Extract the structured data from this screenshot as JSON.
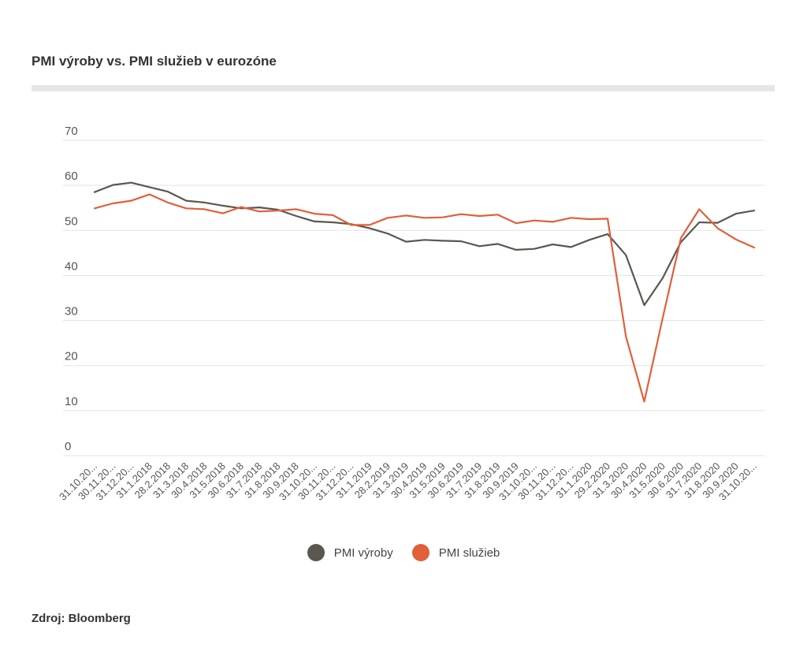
{
  "title": "PMI výroby vs. PMI služieb v eurozóne",
  "source": "Zdroj: Bloomberg",
  "colors": {
    "manufacturing": "#5b5750",
    "services": "#e0603a",
    "grid": "#e3e3e3",
    "axis_text": "#555555"
  },
  "chart_data": {
    "type": "line",
    "title": "PMI výroby vs. PMI služieb v eurozóne",
    "ylim": [
      0,
      70
    ],
    "yticks": [
      0,
      10,
      20,
      30,
      40,
      50,
      60,
      70
    ],
    "grid": true,
    "legend_position": "bottom-center",
    "x_tick_labels": [
      "31.10.20...",
      "30.11.20...",
      "31.12.20...",
      "31.1.2018",
      "28.2.2018",
      "31.3.2018",
      "30.4.2018",
      "31.5.2018",
      "30.6.2018",
      "31.7.2018",
      "31.8.2018",
      "30.9.2018",
      "31.10.20...",
      "30.11.20...",
      "31.12.20...",
      "31.1.2019",
      "28.2.2019",
      "31.3.2019",
      "30.4.2019",
      "31.5.2019",
      "30.6.2019",
      "31.7.2019",
      "31.8.2019",
      "30.9.2019",
      "31.10.20...",
      "30.11.20...",
      "31.12.20...",
      "31.1.2020",
      "29.2.2020",
      "31.3.2020",
      "30.4.2020",
      "31.5.2020",
      "30.6.2020",
      "31.7.2020",
      "31.8.2020",
      "30.9.2020",
      "31.10.20..."
    ],
    "series": [
      {
        "name": "PMI výroby",
        "color": "#5b5750",
        "values": [
          58.5,
          60.1,
          60.6,
          59.6,
          58.6,
          56.6,
          56.2,
          55.5,
          54.9,
          55.1,
          54.6,
          53.2,
          52.0,
          51.8,
          51.4,
          50.5,
          49.3,
          47.5,
          47.9,
          47.7,
          47.6,
          46.5,
          47.0,
          45.7,
          45.9,
          46.9,
          46.3,
          47.9,
          49.2,
          44.5,
          33.4,
          39.4,
          47.4,
          51.8,
          51.7,
          53.7,
          54.4
        ]
      },
      {
        "name": "PMI služieb",
        "color": "#e0603a",
        "values": [
          54.9,
          56.0,
          56.6,
          58.0,
          56.2,
          54.9,
          54.7,
          53.8,
          55.2,
          54.2,
          54.4,
          54.7,
          53.7,
          53.4,
          51.2,
          51.2,
          52.8,
          53.3,
          52.8,
          52.9,
          53.6,
          53.2,
          53.5,
          51.6,
          52.2,
          51.9,
          52.8,
          52.5,
          52.6,
          26.4,
          12.0,
          30.5,
          48.3,
          54.7,
          50.5,
          48.0,
          46.2
        ]
      }
    ]
  }
}
